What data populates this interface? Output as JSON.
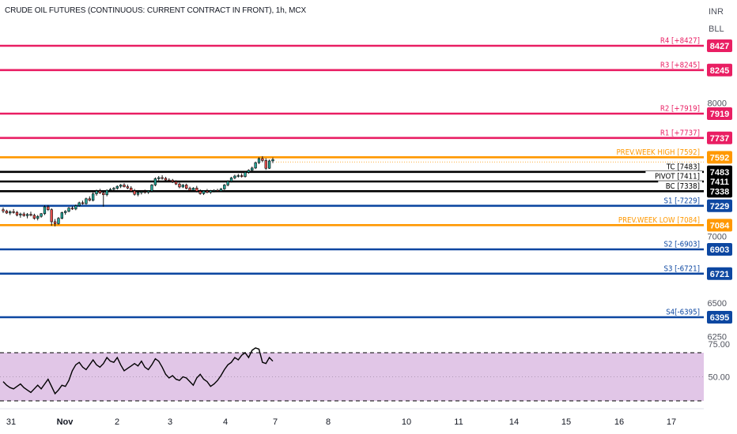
{
  "header": {
    "title": "CRUDE OIL FUTURES (CONTINUOUS: CURRENT CONTRACT IN FRONT), 1h, MCX",
    "currency": "INR",
    "unit": "BLL"
  },
  "colors": {
    "resistance": "#e91e63",
    "pivot_lines": "#000000",
    "prev_week": "#ff9800",
    "support": "#0d47a1",
    "candle_up": "#26a69a",
    "candle_down": "#ef5350",
    "rsi_fill": "#e1c6e7",
    "rsi_line": "#000000"
  },
  "chart_data": {
    "type": "candlestick",
    "price_axis": {
      "ticks": [
        "8000",
        "7000",
        "6500",
        "6250"
      ],
      "range": [
        6200,
        8650
      ]
    },
    "levels": [
      {
        "label": "R4 [+8427]",
        "value": 8427,
        "badge": "8427",
        "kind": "resistance"
      },
      {
        "label": "R3 [+8245]",
        "value": 8245,
        "badge": "8245",
        "kind": "resistance"
      },
      {
        "label": "R2 [+7919]",
        "value": 7919,
        "badge": "7919",
        "kind": "resistance"
      },
      {
        "label": "R1 [+7737]",
        "value": 7737,
        "badge": "7737",
        "kind": "resistance"
      },
      {
        "label": "PREV.WEEK HIGH [7592]",
        "value": 7592,
        "badge": "7592",
        "kind": "prev_week"
      },
      {
        "label": "TC [7483]",
        "value": 7483,
        "badge": "7483",
        "kind": "pivot_lines"
      },
      {
        "label": "PIVOT [7411]",
        "value": 7411,
        "badge": "7411",
        "kind": "pivot_lines"
      },
      {
        "label": "BC [7338]",
        "value": 7338,
        "badge": "7338",
        "kind": "pivot_lines"
      },
      {
        "label": "S1 [-7229]",
        "value": 7229,
        "badge": "7229",
        "kind": "support"
      },
      {
        "label": "PREV.WEEK LOW [7084]",
        "value": 7084,
        "badge": "7084",
        "kind": "prev_week"
      },
      {
        "label": "S2 [-6903]",
        "value": 6903,
        "badge": "6903",
        "kind": "support"
      },
      {
        "label": "S3 [-6721]",
        "value": 6721,
        "badge": "6721",
        "kind": "support"
      },
      {
        "label": "S4[-6395]",
        "value": 6395,
        "badge": "6395",
        "kind": "support"
      }
    ],
    "candles": [
      {
        "o": 7200,
        "h": 7215,
        "l": 7175,
        "c": 7190
      },
      {
        "o": 7190,
        "h": 7200,
        "l": 7168,
        "c": 7175
      },
      {
        "o": 7175,
        "h": 7195,
        "l": 7160,
        "c": 7185
      },
      {
        "o": 7185,
        "h": 7205,
        "l": 7170,
        "c": 7180
      },
      {
        "o": 7180,
        "h": 7190,
        "l": 7150,
        "c": 7160
      },
      {
        "o": 7160,
        "h": 7178,
        "l": 7140,
        "c": 7168
      },
      {
        "o": 7168,
        "h": 7182,
        "l": 7148,
        "c": 7155
      },
      {
        "o": 7155,
        "h": 7175,
        "l": 7135,
        "c": 7165
      },
      {
        "o": 7165,
        "h": 7185,
        "l": 7150,
        "c": 7158
      },
      {
        "o": 7158,
        "h": 7170,
        "l": 7125,
        "c": 7135
      },
      {
        "o": 7135,
        "h": 7160,
        "l": 7120,
        "c": 7150
      },
      {
        "o": 7150,
        "h": 7175,
        "l": 7140,
        "c": 7170
      },
      {
        "o": 7170,
        "h": 7232,
        "l": 7160,
        "c": 7222
      },
      {
        "o": 7222,
        "h": 7235,
        "l": 7190,
        "c": 7200
      },
      {
        "o": 7200,
        "h": 7210,
        "l": 7080,
        "c": 7110
      },
      {
        "o": 7110,
        "h": 7130,
        "l": 7075,
        "c": 7095
      },
      {
        "o": 7095,
        "h": 7145,
        "l": 7088,
        "c": 7135
      },
      {
        "o": 7135,
        "h": 7185,
        "l": 7128,
        "c": 7178
      },
      {
        "o": 7178,
        "h": 7196,
        "l": 7162,
        "c": 7188
      },
      {
        "o": 7188,
        "h": 7220,
        "l": 7180,
        "c": 7212
      },
      {
        "o": 7212,
        "h": 7226,
        "l": 7198,
        "c": 7205
      },
      {
        "o": 7205,
        "h": 7238,
        "l": 7196,
        "c": 7230
      },
      {
        "o": 7230,
        "h": 7260,
        "l": 7222,
        "c": 7252
      },
      {
        "o": 7252,
        "h": 7268,
        "l": 7238,
        "c": 7245
      },
      {
        "o": 7245,
        "h": 7290,
        "l": 7238,
        "c": 7282
      },
      {
        "o": 7282,
        "h": 7300,
        "l": 7262,
        "c": 7270
      },
      {
        "o": 7270,
        "h": 7330,
        "l": 7262,
        "c": 7318
      },
      {
        "o": 7318,
        "h": 7350,
        "l": 7305,
        "c": 7340
      },
      {
        "o": 7340,
        "h": 7356,
        "l": 7318,
        "c": 7325
      },
      {
        "o": 7325,
        "h": 7338,
        "l": 7222,
        "c": 7312
      },
      {
        "o": 7312,
        "h": 7352,
        "l": 7300,
        "c": 7345
      },
      {
        "o": 7345,
        "h": 7362,
        "l": 7332,
        "c": 7352
      },
      {
        "o": 7352,
        "h": 7370,
        "l": 7340,
        "c": 7360
      },
      {
        "o": 7360,
        "h": 7382,
        "l": 7350,
        "c": 7375
      },
      {
        "o": 7375,
        "h": 7392,
        "l": 7362,
        "c": 7385
      },
      {
        "o": 7385,
        "h": 7398,
        "l": 7366,
        "c": 7372
      },
      {
        "o": 7372,
        "h": 7388,
        "l": 7354,
        "c": 7362
      },
      {
        "o": 7362,
        "h": 7376,
        "l": 7332,
        "c": 7340
      },
      {
        "o": 7340,
        "h": 7355,
        "l": 7305,
        "c": 7315
      },
      {
        "o": 7315,
        "h": 7338,
        "l": 7300,
        "c": 7328
      },
      {
        "o": 7328,
        "h": 7345,
        "l": 7314,
        "c": 7335
      },
      {
        "o": 7335,
        "h": 7350,
        "l": 7320,
        "c": 7330
      },
      {
        "o": 7330,
        "h": 7345,
        "l": 7318,
        "c": 7340
      },
      {
        "o": 7340,
        "h": 7392,
        "l": 7330,
        "c": 7385
      },
      {
        "o": 7385,
        "h": 7442,
        "l": 7375,
        "c": 7432
      },
      {
        "o": 7432,
        "h": 7452,
        "l": 7418,
        "c": 7440
      },
      {
        "o": 7440,
        "h": 7458,
        "l": 7425,
        "c": 7435
      },
      {
        "o": 7435,
        "h": 7445,
        "l": 7415,
        "c": 7422
      },
      {
        "o": 7422,
        "h": 7435,
        "l": 7408,
        "c": 7420
      },
      {
        "o": 7420,
        "h": 7430,
        "l": 7400,
        "c": 7410
      },
      {
        "o": 7410,
        "h": 7420,
        "l": 7385,
        "c": 7392
      },
      {
        "o": 7392,
        "h": 7402,
        "l": 7360,
        "c": 7370
      },
      {
        "o": 7370,
        "h": 7392,
        "l": 7362,
        "c": 7385
      },
      {
        "o": 7385,
        "h": 7395,
        "l": 7352,
        "c": 7360
      },
      {
        "o": 7360,
        "h": 7372,
        "l": 7335,
        "c": 7345
      },
      {
        "o": 7345,
        "h": 7368,
        "l": 7338,
        "c": 7362
      },
      {
        "o": 7362,
        "h": 7378,
        "l": 7330,
        "c": 7338
      },
      {
        "o": 7338,
        "h": 7352,
        "l": 7312,
        "c": 7320
      },
      {
        "o": 7320,
        "h": 7345,
        "l": 7310,
        "c": 7340
      },
      {
        "o": 7340,
        "h": 7355,
        "l": 7322,
        "c": 7330
      },
      {
        "o": 7330,
        "h": 7348,
        "l": 7318,
        "c": 7342
      },
      {
        "o": 7342,
        "h": 7352,
        "l": 7330,
        "c": 7345
      },
      {
        "o": 7345,
        "h": 7356,
        "l": 7332,
        "c": 7340
      },
      {
        "o": 7340,
        "h": 7362,
        "l": 7332,
        "c": 7355
      },
      {
        "o": 7355,
        "h": 7392,
        "l": 7348,
        "c": 7385
      },
      {
        "o": 7385,
        "h": 7420,
        "l": 7375,
        "c": 7412
      },
      {
        "o": 7412,
        "h": 7445,
        "l": 7404,
        "c": 7438
      },
      {
        "o": 7438,
        "h": 7462,
        "l": 7428,
        "c": 7452
      },
      {
        "o": 7452,
        "h": 7468,
        "l": 7440,
        "c": 7455
      },
      {
        "o": 7455,
        "h": 7472,
        "l": 7440,
        "c": 7448
      },
      {
        "o": 7448,
        "h": 7488,
        "l": 7440,
        "c": 7480
      },
      {
        "o": 7480,
        "h": 7502,
        "l": 7470,
        "c": 7495
      },
      {
        "o": 7495,
        "h": 7522,
        "l": 7485,
        "c": 7512
      },
      {
        "o": 7512,
        "h": 7560,
        "l": 7504,
        "c": 7552
      },
      {
        "o": 7552,
        "h": 7592,
        "l": 7542,
        "c": 7582
      },
      {
        "o": 7582,
        "h": 7600,
        "l": 7555,
        "c": 7568
      },
      {
        "o": 7568,
        "h": 7585,
        "l": 7498,
        "c": 7510
      },
      {
        "o": 7510,
        "h": 7575,
        "l": 7505,
        "c": 7565
      },
      {
        "o": 7565,
        "h": 7590,
        "l": 7548,
        "c": 7575
      }
    ],
    "rsi": {
      "ticks": [
        "75.00",
        "50.00"
      ],
      "upper": 70,
      "lower": 30,
      "mid": 50,
      "values": [
        46,
        43,
        41,
        40,
        42,
        44,
        41,
        39,
        37,
        40,
        43,
        40,
        44,
        48,
        42,
        36,
        39,
        43,
        42,
        47,
        55,
        60,
        62,
        58,
        56,
        60,
        64,
        60,
        58,
        61,
        66,
        63,
        62,
        66,
        60,
        55,
        57,
        59,
        61,
        59,
        63,
        58,
        56,
        60,
        65,
        63,
        58,
        52,
        49,
        51,
        48,
        47,
        50,
        49,
        46,
        43,
        49,
        52,
        48,
        46,
        42,
        44,
        47,
        51,
        56,
        60,
        62,
        66,
        64,
        68,
        70,
        66,
        72,
        74,
        73,
        62,
        61,
        66,
        63
      ]
    },
    "time_axis": {
      "labels": [
        "31",
        "Nov",
        "2",
        "3",
        "4",
        "7",
        "8",
        "10",
        "11",
        "14",
        "15",
        "16",
        "17"
      ]
    }
  }
}
